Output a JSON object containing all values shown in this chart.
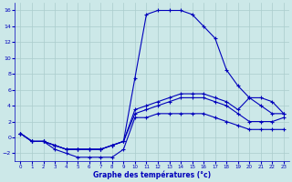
{
  "title": "Graphe des températures (°c)",
  "bg_color": "#cce8e8",
  "grid_color": "#aacccc",
  "line_color": "#0000bb",
  "xlim": [
    -0.5,
    23.5
  ],
  "ylim": [
    -3.0,
    17.0
  ],
  "xticks": [
    0,
    1,
    2,
    3,
    4,
    5,
    6,
    7,
    8,
    9,
    10,
    11,
    12,
    13,
    14,
    15,
    16,
    17,
    18,
    19,
    20,
    21,
    22,
    23
  ],
  "yticks": [
    -2,
    0,
    2,
    4,
    6,
    8,
    10,
    12,
    14,
    16
  ],
  "hours": [
    0,
    1,
    2,
    3,
    4,
    5,
    6,
    7,
    8,
    9,
    10,
    11,
    12,
    13,
    14,
    15,
    16,
    17,
    18,
    19,
    20,
    21,
    22,
    23
  ],
  "line_peak": [
    0.5,
    -0.5,
    -0.5,
    -1.0,
    -1.5,
    -1.5,
    -1.5,
    -1.5,
    -1.0,
    -0.5,
    7.5,
    15.5,
    16.0,
    16.0,
    16.0,
    15.5,
    14.0,
    12.5,
    8.5,
    6.5,
    5.0,
    4.0,
    3.0,
    3.0
  ],
  "line_mid1": [
    0.5,
    -0.5,
    -0.5,
    -1.0,
    -1.5,
    -1.5,
    -1.5,
    -1.5,
    -1.0,
    -0.5,
    3.5,
    4.0,
    4.5,
    5.0,
    5.5,
    5.5,
    5.5,
    5.0,
    4.5,
    3.5,
    5.0,
    5.0,
    4.5,
    3.0
  ],
  "line_mid2": [
    0.5,
    -0.5,
    -0.5,
    -1.0,
    -1.5,
    -1.5,
    -1.5,
    -1.5,
    -1.0,
    -0.5,
    3.0,
    3.5,
    4.0,
    4.5,
    5.0,
    5.0,
    5.0,
    4.5,
    4.0,
    3.0,
    2.0,
    2.0,
    2.0,
    2.5
  ],
  "line_bot": [
    0.5,
    -0.5,
    -0.5,
    -1.5,
    -2.0,
    -2.5,
    -2.5,
    -2.5,
    -2.5,
    -1.5,
    2.5,
    2.5,
    3.0,
    3.0,
    3.0,
    3.0,
    3.0,
    2.5,
    2.0,
    1.5,
    1.0,
    1.0,
    1.0,
    1.0
  ]
}
